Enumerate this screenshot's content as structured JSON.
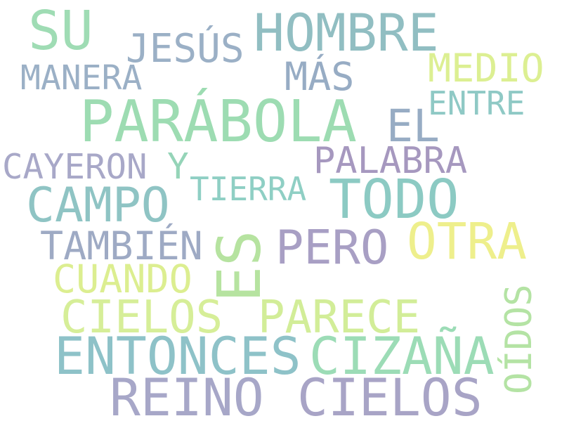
{
  "words": [
    {
      "id": "su",
      "text": "SU",
      "color": "#9fdcb4"
    },
    {
      "id": "hombre",
      "text": "HOMBRE",
      "color": "#91bec2"
    },
    {
      "id": "jesus",
      "text": "JESÚS",
      "color": "#9bb0c6"
    },
    {
      "id": "manera",
      "text": "MANERA",
      "color": "#9bb0c6"
    },
    {
      "id": "mas",
      "text": "MÁS",
      "color": "#97acc4"
    },
    {
      "id": "medio",
      "text": "MEDIO",
      "color": "#dcef92"
    },
    {
      "id": "entre",
      "text": "ENTRE",
      "color": "#8fc9c5"
    },
    {
      "id": "parabola",
      "text": "PARÁBOLA",
      "color": "#9ddcb2"
    },
    {
      "id": "el",
      "text": "EL",
      "color": "#97acc4"
    },
    {
      "id": "palabra",
      "text": "PALABRA",
      "color": "#a698bf"
    },
    {
      "id": "cayeron",
      "text": "CAYERON",
      "color": "#a8a8c8"
    },
    {
      "id": "y",
      "text": "Y",
      "color": "#95d4b8"
    },
    {
      "id": "tierra",
      "text": "TIERRA",
      "color": "#8fcfc4"
    },
    {
      "id": "campo",
      "text": "CAMPO",
      "color": "#8fc4c4"
    },
    {
      "id": "todo",
      "text": "TODO",
      "color": "#8ccac3"
    },
    {
      "id": "es",
      "text": "ES",
      "color": "#b6e3a0"
    },
    {
      "id": "tambien",
      "text": "TAMBIÉN",
      "color": "#9eaac4"
    },
    {
      "id": "pero",
      "text": "PERO",
      "color": "#a89fc4"
    },
    {
      "id": "otra",
      "text": "OTRA",
      "color": "#eeef8c"
    },
    {
      "id": "cuando",
      "text": "CUANDO",
      "color": "#dcee90"
    },
    {
      "id": "oidos",
      "text": "OÍDOS",
      "color": "#b4e3a4"
    },
    {
      "id": "cielos-1",
      "text": "CIELOS",
      "color": "#d6ee98"
    },
    {
      "id": "parece",
      "text": "PARECE",
      "color": "#d2ed98"
    },
    {
      "id": "entonces",
      "text": "ENTONCES",
      "color": "#8ec2c8"
    },
    {
      "id": "cizana",
      "text": "CIZAÑA",
      "color": "#9cdcb6"
    },
    {
      "id": "reino",
      "text": "REINO",
      "color": "#a7a7c8"
    },
    {
      "id": "cielos-2",
      "text": "CIELOS",
      "color": "#a8a4c6"
    }
  ]
}
